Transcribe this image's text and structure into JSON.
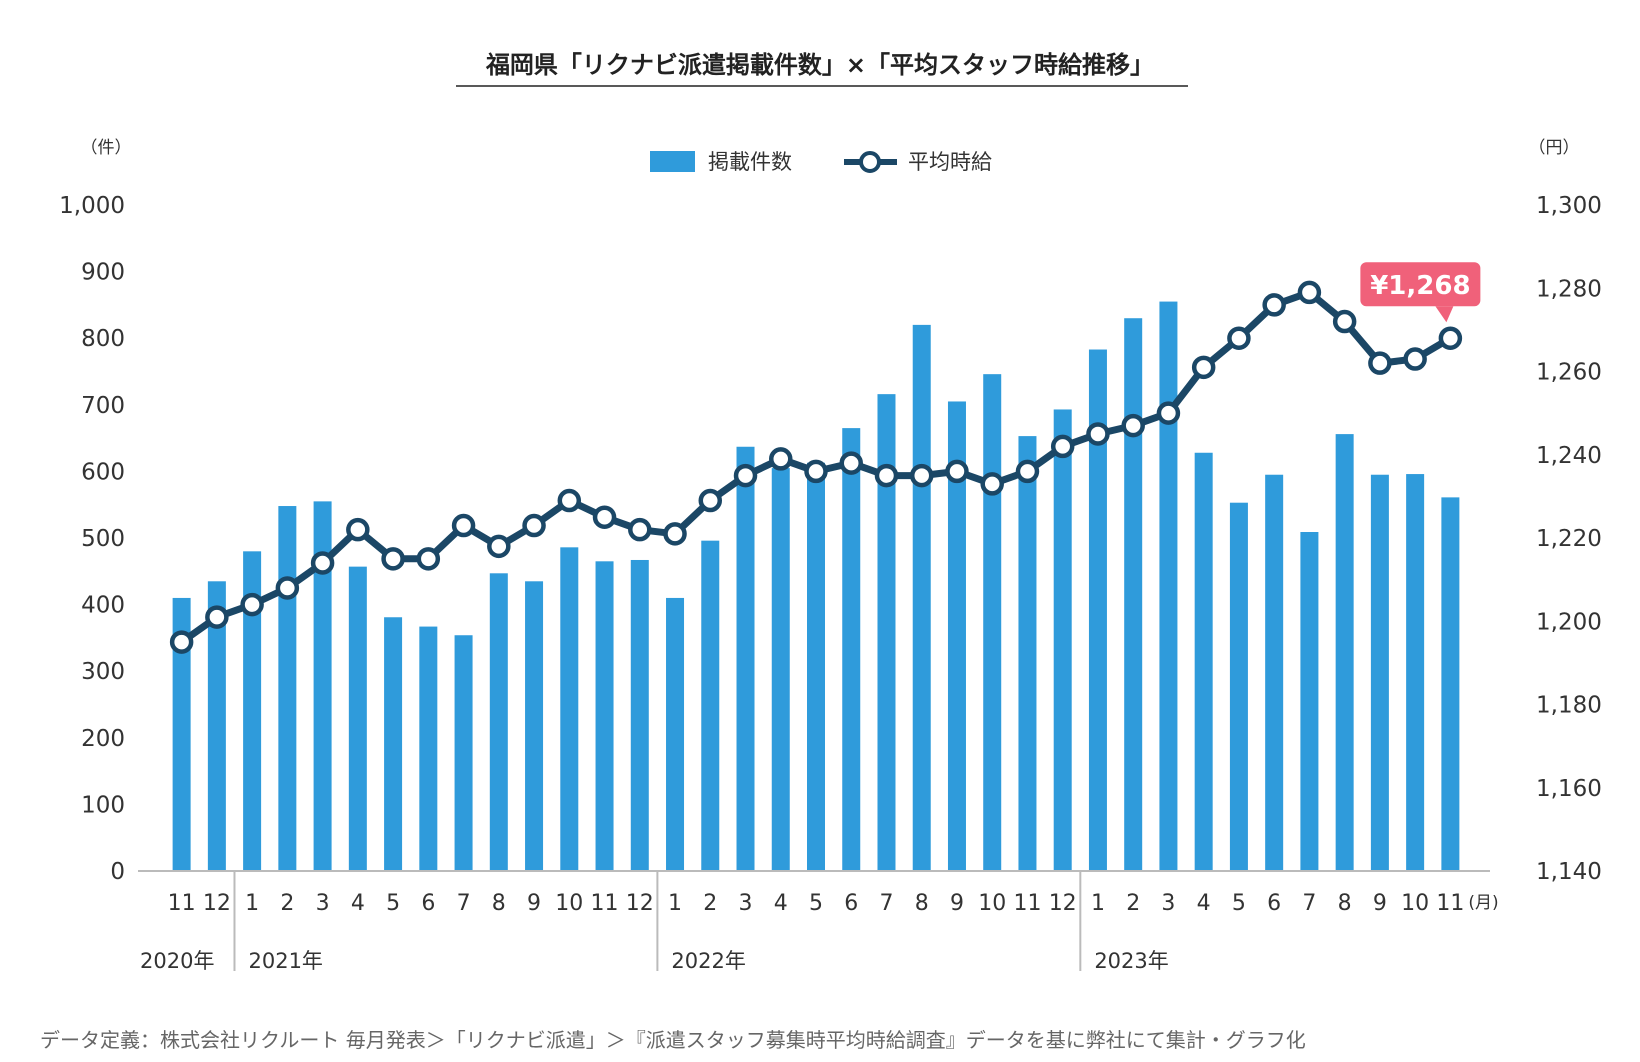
{
  "chart_data": {
    "type": "bar",
    "title": "福岡県「リクナビ派遣掲載件数」×「平均スタッフ時給推移」",
    "left_axis_unit": "（件）",
    "right_axis_unit": "（円）",
    "month_unit": "(月)",
    "categories": [
      "11",
      "12",
      "1",
      "2",
      "3",
      "4",
      "5",
      "6",
      "7",
      "8",
      "9",
      "10",
      "11",
      "12",
      "1",
      "2",
      "3",
      "4",
      "5",
      "6",
      "7",
      "8",
      "9",
      "10",
      "11",
      "12",
      "1",
      "2",
      "3",
      "4",
      "5",
      "6",
      "7",
      "8",
      "9",
      "10",
      "11"
    ],
    "year_labels": [
      "2020年",
      "2021年",
      "2022年",
      "2023年"
    ],
    "year_start_index": [
      0,
      2,
      14,
      26
    ],
    "ylim_left": [
      0,
      1000
    ],
    "ylim_right": [
      1140,
      1300
    ],
    "left_ticks": [
      "0",
      "100",
      "200",
      "300",
      "400",
      "500",
      "600",
      "700",
      "800",
      "900",
      "1,000"
    ],
    "right_ticks": [
      "1,140",
      "1,160",
      "1,180",
      "1,200",
      "1,220",
      "1,240",
      "1,260",
      "1,280",
      "1,300"
    ],
    "series": [
      {
        "name": "掲載件数",
        "type": "bar",
        "axis": "left",
        "color": "#2f9bdb",
        "values": [
          410,
          435,
          480,
          548,
          555,
          457,
          381,
          367,
          354,
          447,
          435,
          486,
          465,
          467,
          410,
          496,
          637,
          605,
          613,
          665,
          716,
          820,
          705,
          746,
          653,
          693,
          783,
          830,
          855,
          628,
          553,
          595,
          509,
          656,
          595,
          596,
          561
        ]
      },
      {
        "name": "平均時給",
        "type": "line",
        "axis": "right",
        "color": "#1b4766",
        "values": [
          1195,
          1201,
          1204,
          1208,
          1214,
          1222,
          1215,
          1215,
          1223,
          1218,
          1223,
          1229,
          1225,
          1222,
          1221,
          1229,
          1235,
          1239,
          1236,
          1238,
          1235,
          1235,
          1236,
          1233,
          1236,
          1242,
          1245,
          1247,
          1250,
          1261,
          1268,
          1276,
          1279,
          1272,
          1262,
          1263,
          1268
        ]
      }
    ],
    "callout": {
      "text": "¥1,268",
      "color": "#f0617a"
    },
    "grid": false,
    "legend_placement": "top-center"
  },
  "footnote": "データ定義：株式会社リクルート 毎月発表＞「リクナビ派遣」＞『派遣スタッフ募集時平均時給調査』データを基に弊社にて集計・グラフ化"
}
